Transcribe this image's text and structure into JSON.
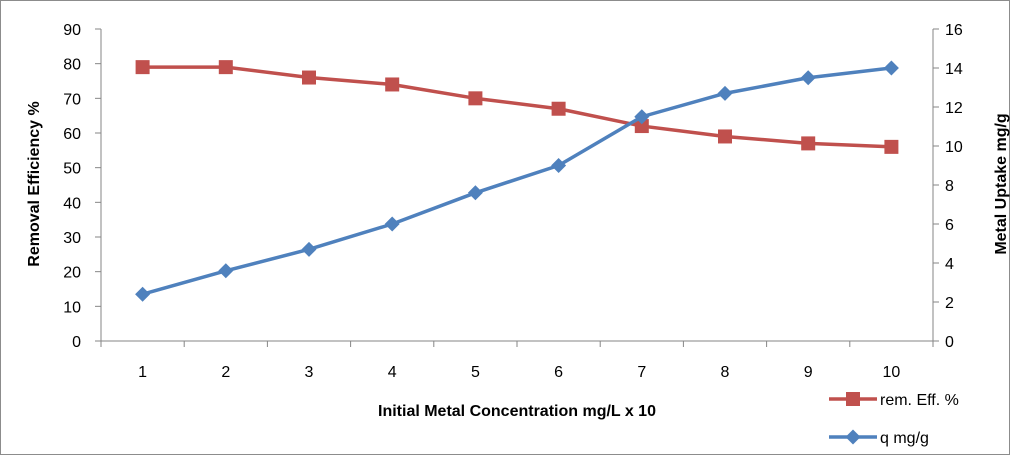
{
  "chart_data": {
    "type": "line",
    "x": [
      1,
      2,
      3,
      4,
      5,
      6,
      7,
      8,
      9,
      10
    ],
    "categories": [
      "1",
      "2",
      "3",
      "4",
      "5",
      "6",
      "7",
      "8",
      "9",
      "10"
    ],
    "xlabel": "Initial Metal Concentration mg/L x 10",
    "ylabel": "Removal Efficiency  %",
    "y2label": "Metal Uptake mg/g",
    "ylim": [
      0,
      90
    ],
    "y2lim": [
      0,
      16
    ],
    "yticks": [
      "0",
      "10",
      "20",
      "30",
      "40",
      "50",
      "60",
      "70",
      "80",
      "90"
    ],
    "y2ticks": [
      "0",
      "2",
      "4",
      "6",
      "8",
      "10",
      "12",
      "14",
      "16"
    ],
    "grid": false,
    "legend_position": "bottom-right",
    "series": [
      {
        "name": "rem. Eff.  %",
        "axis": "left",
        "marker": "square",
        "color": "#C0504D",
        "values": [
          79,
          79,
          76,
          74,
          70,
          67,
          62,
          59,
          57,
          56
        ]
      },
      {
        "name": "q  mg/g",
        "axis": "right",
        "marker": "diamond",
        "color": "#4F81BD",
        "values": [
          2.4,
          3.6,
          4.7,
          6.0,
          7.6,
          9.0,
          11.5,
          12.7,
          13.5,
          14.0
        ]
      }
    ]
  }
}
